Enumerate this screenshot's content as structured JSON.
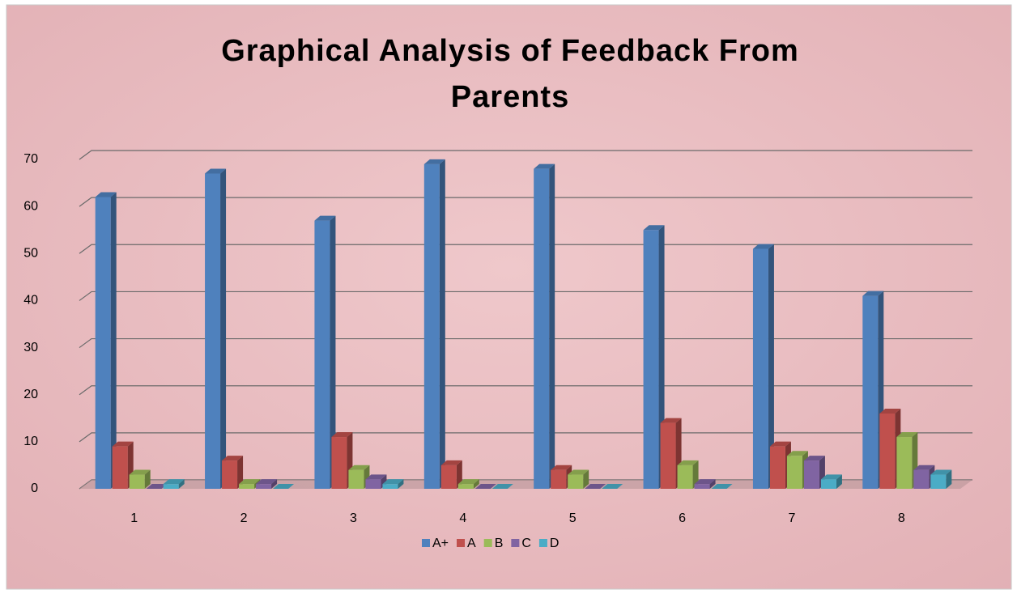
{
  "chart_data": {
    "type": "bar",
    "title": "Graphical Analysis of Feedback From Parents",
    "categories": [
      "1",
      "2",
      "3",
      "4",
      "5",
      "6",
      "7",
      "8"
    ],
    "series": [
      {
        "name": "A+",
        "color": "#4f81bd",
        "values": [
          62,
          67,
          57,
          69,
          68,
          55,
          51,
          41
        ]
      },
      {
        "name": "A",
        "color": "#c0504d",
        "values": [
          9,
          6,
          11,
          5,
          4,
          14,
          9,
          16
        ]
      },
      {
        "name": "B",
        "color": "#9bbb59",
        "values": [
          3,
          1,
          4,
          1,
          3,
          5,
          7,
          11
        ]
      },
      {
        "name": "C",
        "color": "#8064a2",
        "values": [
          0,
          1,
          2,
          0,
          0,
          1,
          6,
          4
        ]
      },
      {
        "name": "D",
        "color": "#4bacc6",
        "values": [
          1,
          0,
          1,
          0,
          0,
          0,
          2,
          3
        ]
      }
    ],
    "ylim": [
      0,
      70
    ],
    "yticks": [
      0,
      10,
      20,
      30,
      40,
      50,
      60,
      70
    ],
    "grid": true,
    "legend": "bottom"
  }
}
